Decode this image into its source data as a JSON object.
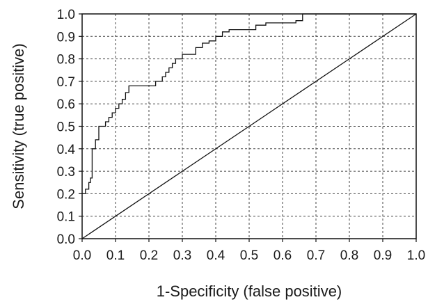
{
  "chart_data": {
    "type": "line",
    "title": "",
    "xlabel": "1-Specificity (false positive)",
    "ylabel": "Sensitivity (true positive)",
    "xlim": [
      0,
      1
    ],
    "ylim": [
      0,
      1
    ],
    "grid": true,
    "x_ticks": [
      "0.0",
      "0.1",
      "0.2",
      "0.3",
      "0.4",
      "0.5",
      "0.6",
      "0.7",
      "0.8",
      "0.9",
      "1.0"
    ],
    "y_ticks": [
      "0.0",
      "0.1",
      "0.2",
      "0.3",
      "0.4",
      "0.5",
      "0.6",
      "0.7",
      "0.8",
      "0.9",
      "1.0"
    ],
    "series": [
      {
        "line_style": "step",
        "x": [
          0,
          0.01,
          0.01,
          0.02,
          0.02,
          0.025,
          0.025,
          0.03,
          0.03,
          0.04,
          0.04,
          0.05,
          0.05,
          0.07,
          0.07,
          0.08,
          0.08,
          0.09,
          0.09,
          0.1,
          0.1,
          0.11,
          0.11,
          0.12,
          0.12,
          0.13,
          0.13,
          0.14,
          0.14,
          0.22,
          0.22,
          0.24,
          0.24,
          0.25,
          0.25,
          0.26,
          0.26,
          0.27,
          0.27,
          0.28,
          0.28,
          0.3,
          0.3,
          0.34,
          0.34,
          0.36,
          0.36,
          0.38,
          0.38,
          0.4,
          0.4,
          0.42,
          0.42,
          0.44,
          0.44,
          0.52,
          0.52,
          0.55,
          0.55,
          0.64,
          0.64,
          0.66,
          0.66,
          1.0
        ],
        "y": [
          0.2,
          0.2,
          0.22,
          0.22,
          0.25,
          0.25,
          0.27,
          0.27,
          0.4,
          0.4,
          0.44,
          0.44,
          0.5,
          0.5,
          0.52,
          0.52,
          0.54,
          0.54,
          0.56,
          0.56,
          0.58,
          0.58,
          0.6,
          0.6,
          0.62,
          0.62,
          0.65,
          0.65,
          0.68,
          0.68,
          0.7,
          0.7,
          0.72,
          0.72,
          0.74,
          0.74,
          0.76,
          0.76,
          0.78,
          0.78,
          0.8,
          0.8,
          0.82,
          0.82,
          0.85,
          0.85,
          0.87,
          0.87,
          0.88,
          0.88,
          0.9,
          0.9,
          0.92,
          0.92,
          0.93,
          0.93,
          0.95,
          0.95,
          0.96,
          0.96,
          0.97,
          0.97,
          1.0,
          1.0
        ]
      },
      {
        "line_style": "straight",
        "x": [
          0,
          1
        ],
        "y": [
          0,
          1
        ]
      }
    ]
  }
}
